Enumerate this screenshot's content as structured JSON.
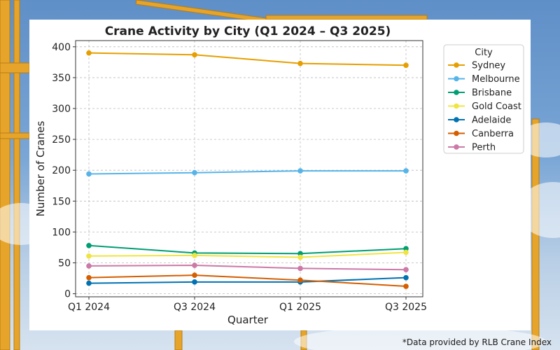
{
  "credit": "*Data provided by RLB Crane Index",
  "chart_data": {
    "type": "line",
    "title": "Crane Activity by City (Q1 2024 – Q3 2025)",
    "xlabel": "Quarter",
    "ylabel": "Number of Cranes",
    "categories": [
      "Q1 2024",
      "Q3 2024",
      "Q1 2025",
      "Q3 2025"
    ],
    "ylim": [
      -5,
      410
    ],
    "yticks": [
      0,
      50,
      100,
      150,
      200,
      250,
      300,
      350,
      400
    ],
    "grid": true,
    "legend_title": "City",
    "legend_position": "top-right",
    "series": [
      {
        "name": "Sydney",
        "color": "#e69f00",
        "values": [
          390,
          387,
          373,
          370
        ]
      },
      {
        "name": "Melbourne",
        "color": "#56b4e9",
        "values": [
          194,
          196,
          199,
          199
        ]
      },
      {
        "name": "Brisbane",
        "color": "#009e73",
        "values": [
          78,
          66,
          65,
          73
        ]
      },
      {
        "name": "Gold Coast",
        "color": "#f0e442",
        "values": [
          61,
          62,
          59,
          67
        ]
      },
      {
        "name": "Adelaide",
        "color": "#0072b2",
        "values": [
          17,
          19,
          19,
          26
        ]
      },
      {
        "name": "Canberra",
        "color": "#d55e00",
        "values": [
          26,
          30,
          22,
          12
        ]
      },
      {
        "name": "Perth",
        "color": "#cc79a7",
        "values": [
          45,
          46,
          41,
          39
        ]
      }
    ]
  }
}
